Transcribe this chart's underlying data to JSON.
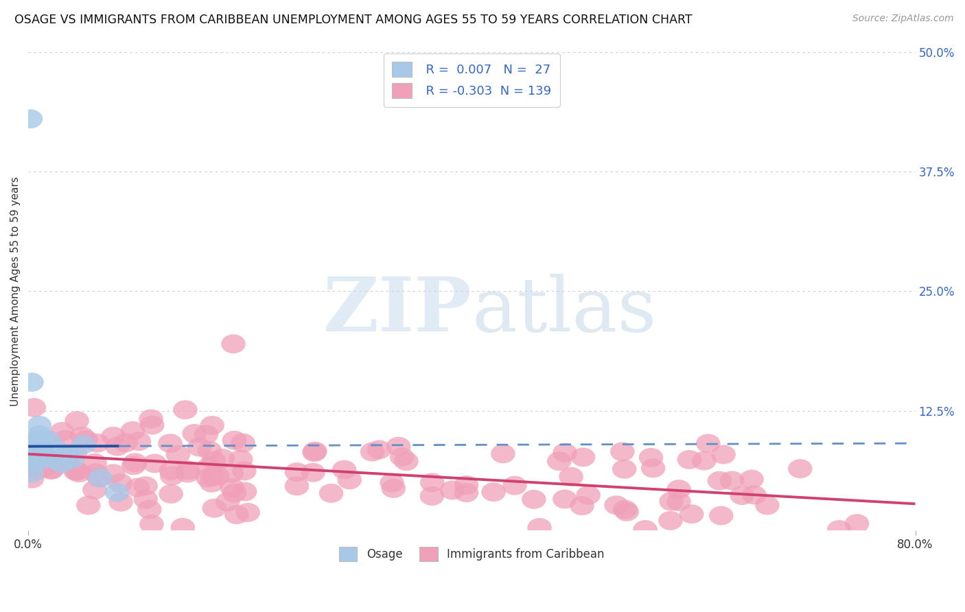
{
  "title": "OSAGE VS IMMIGRANTS FROM CARIBBEAN UNEMPLOYMENT AMONG AGES 55 TO 59 YEARS CORRELATION CHART",
  "source": "Source: ZipAtlas.com",
  "ylabel": "Unemployment Among Ages 55 to 59 years",
  "xlim": [
    0.0,
    0.8
  ],
  "ylim": [
    0.0,
    0.5
  ],
  "ytick_positions": [
    0.125,
    0.25,
    0.375,
    0.5
  ],
  "ytick_labels": [
    "12.5%",
    "25.0%",
    "37.5%",
    "50.0%"
  ],
  "grid_color": "#cccccc",
  "background_color": "#ffffff",
  "osage_color": "#a8c8e8",
  "caribbean_color": "#f0a0b8",
  "osage_line_color": "#2050a0",
  "osage_line_color_dash": "#6090c8",
  "caribbean_line_color": "#d04070",
  "osage_R": "0.007",
  "osage_N": "27",
  "caribbean_R": "-0.303",
  "caribbean_N": "139",
  "legend_label_osage": "Osage",
  "legend_label_caribbean": "Immigrants from Caribbean",
  "label_color": "#3366cc",
  "title_fontsize": 12.5,
  "axis_label_fontsize": 11,
  "tick_label_color": "#333333",
  "source_color": "#999999"
}
